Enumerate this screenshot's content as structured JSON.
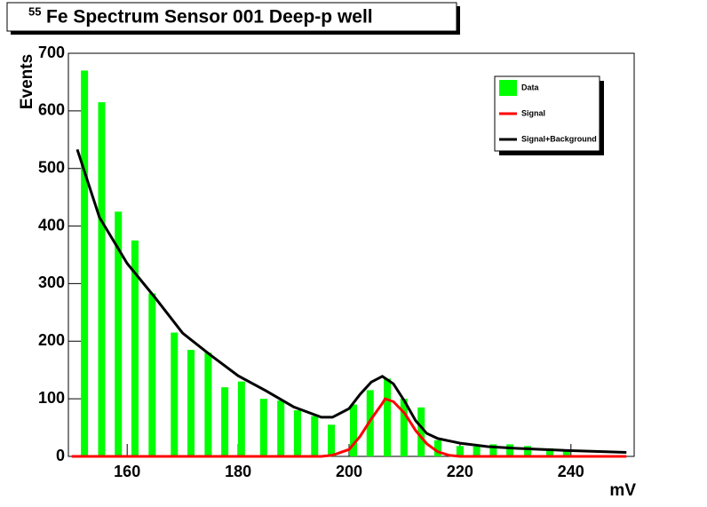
{
  "chart_data": {
    "type": "bar",
    "title_superscript": "55",
    "title": "Fe Spectrum Sensor 001 Deep-p well",
    "y_label": "Events",
    "x_label": "mV",
    "xlim": [
      149.4,
      251.4
    ],
    "xticks": [
      160,
      180,
      200,
      220,
      240
    ],
    "ylim": [
      0,
      700
    ],
    "yticks": [
      0,
      100,
      200,
      300,
      400,
      500,
      600,
      700
    ],
    "legend": "top-right",
    "bars": {
      "name": "Data",
      "color": "#00ff00",
      "x": [
        152.3,
        155.4,
        158.4,
        161.4,
        164.5,
        168.5,
        171.5,
        174.6,
        177.6,
        180.6,
        184.6,
        187.7,
        190.7,
        193.8,
        196.8,
        200.8,
        203.8,
        206.9,
        209.9,
        213,
        216,
        220,
        223,
        226,
        229,
        232.2,
        236.2,
        239.2
      ],
      "values": [
        670,
        615,
        425,
        375,
        283,
        215,
        185,
        180,
        120,
        130,
        100,
        97,
        80,
        70,
        55,
        90,
        115,
        135,
        100,
        85,
        28,
        18,
        17,
        21,
        21,
        18,
        14,
        9
      ]
    },
    "series": [
      {
        "name": "Signal",
        "color": "#ff0000",
        "x": [
          150,
          195,
          197,
          200,
          202,
          204,
          206,
          206.5,
          208,
          210,
          212,
          214,
          216,
          218,
          220,
          250
        ],
        "values": [
          0,
          0,
          2,
          12,
          35,
          65,
          92,
          100,
          95,
          75,
          45,
          22,
          8,
          2,
          0,
          0
        ]
      },
      {
        "name": "Signal+Background",
        "color": "#000000",
        "x": [
          151,
          155,
          160,
          165,
          170,
          175,
          180,
          185,
          190,
          195,
          197,
          200,
          202,
          204,
          206,
          208,
          210,
          212,
          214,
          216,
          220,
          225,
          230,
          240,
          250
        ],
        "values": [
          533,
          415,
          335,
          276,
          214,
          176,
          140,
          114,
          86,
          68,
          68,
          83,
          108,
          129,
          139,
          126,
          96,
          62,
          40,
          31,
          23,
          17,
          14,
          10,
          7
        ]
      }
    ]
  }
}
